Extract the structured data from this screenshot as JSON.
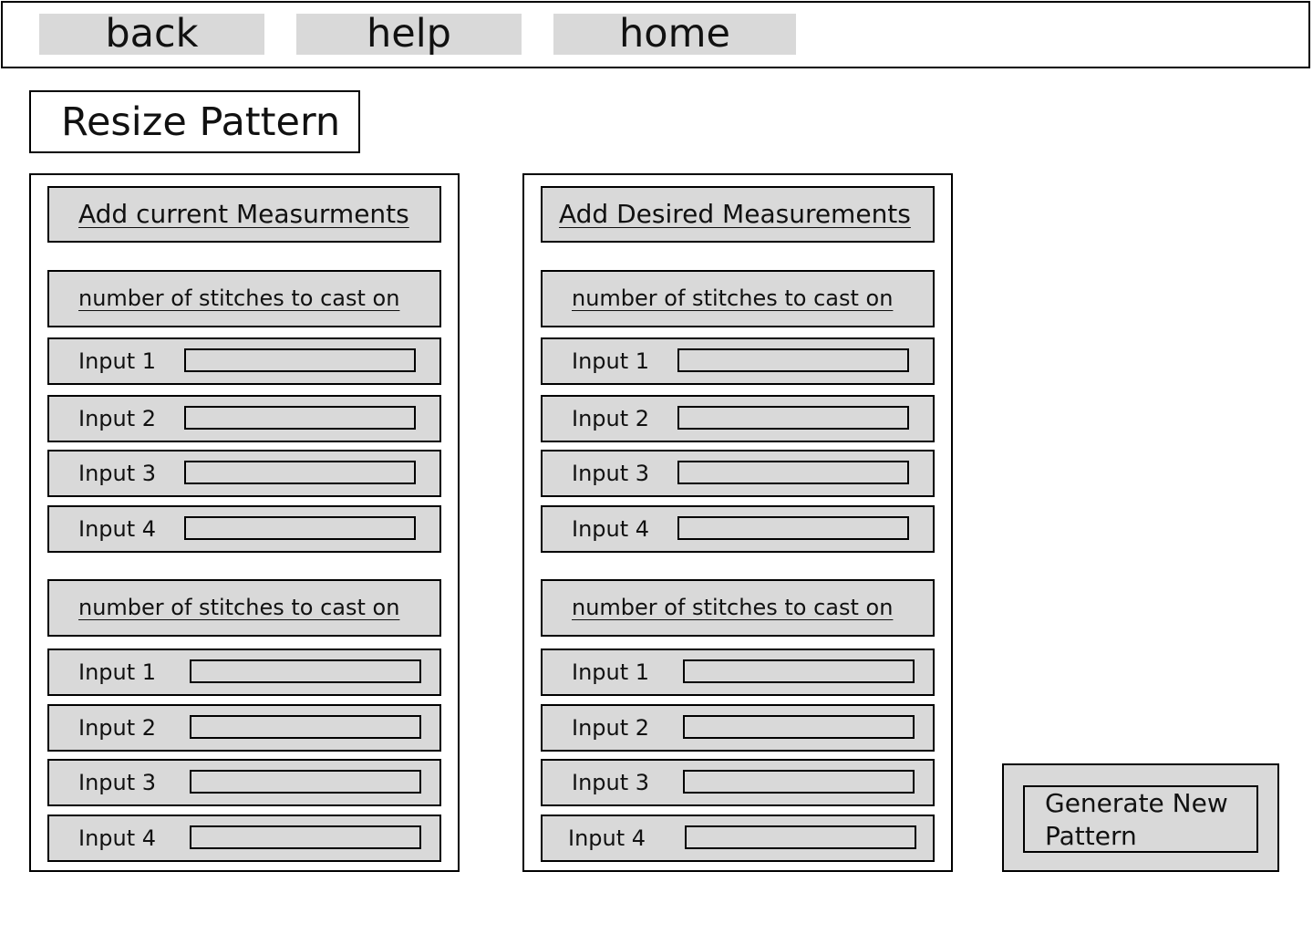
{
  "nav": {
    "back_label": "back",
    "help_label": "help",
    "home_label": "home"
  },
  "page": {
    "title": "Resize Pattern"
  },
  "current_panel": {
    "header": "Add current Measurments",
    "sections": [
      {
        "title": "number of stitches to cast on",
        "inputs": [
          {
            "label": "Input 1",
            "value": ""
          },
          {
            "label": "Input 2",
            "value": ""
          },
          {
            "label": "Input 3",
            "value": ""
          },
          {
            "label": "Input 4",
            "value": ""
          }
        ]
      },
      {
        "title": "number of stitches to cast on",
        "inputs": [
          {
            "label": "Input 1",
            "value": ""
          },
          {
            "label": "Input 2",
            "value": ""
          },
          {
            "label": "Input 3",
            "value": ""
          },
          {
            "label": "Input 4",
            "value": ""
          }
        ]
      }
    ]
  },
  "desired_panel": {
    "header": "Add Desired Measurements",
    "sections": [
      {
        "title": "number of stitches to cast on",
        "inputs": [
          {
            "label": "Input 1",
            "value": ""
          },
          {
            "label": "Input 2",
            "value": ""
          },
          {
            "label": "Input 3",
            "value": ""
          },
          {
            "label": "Input 4",
            "value": ""
          }
        ]
      },
      {
        "title": "number of stitches to cast on",
        "inputs": [
          {
            "label": "Input 1",
            "value": ""
          },
          {
            "label": "Input 2",
            "value": ""
          },
          {
            "label": "Input 3",
            "value": ""
          },
          {
            "label": "Input 4",
            "value": ""
          }
        ]
      }
    ]
  },
  "generate_button": {
    "label": "Generate New Pattern"
  },
  "colors": {
    "control_fill": "#d9d9d9",
    "border": "#000000",
    "background": "#ffffff"
  }
}
